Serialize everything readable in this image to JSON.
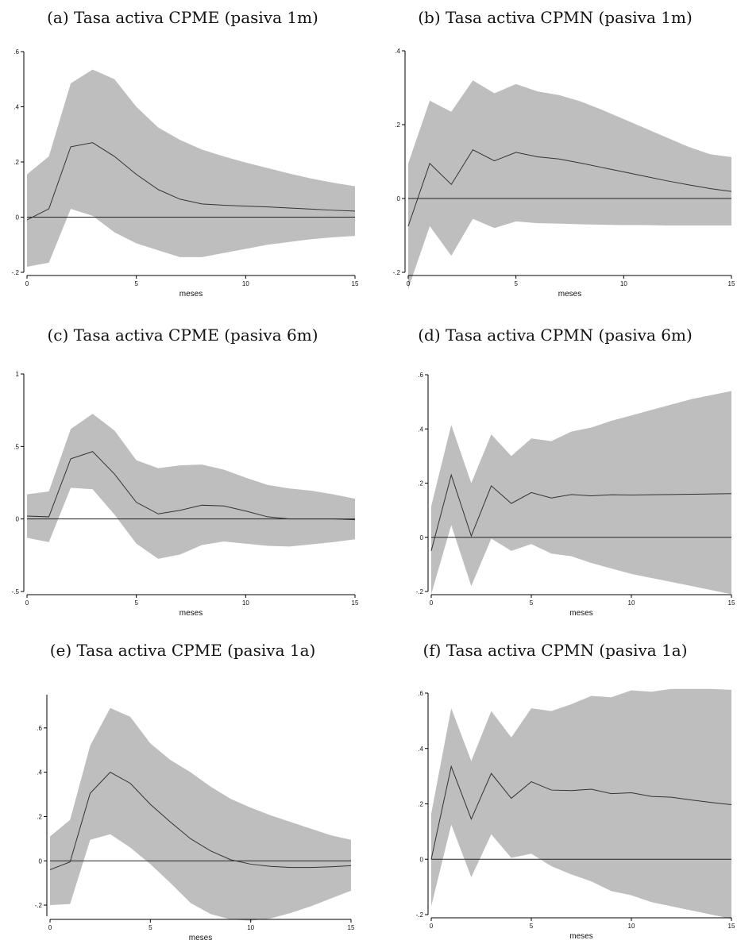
{
  "chart_data": [
    {
      "type": "area",
      "title": "(a) Tasa activa CPME (pasiva 1m)",
      "xlabel": "meses",
      "ylabel": "",
      "xlim": [
        0,
        15
      ],
      "ylim": [
        -0.2,
        0.6
      ],
      "xticks": [
        0,
        5,
        10,
        15
      ],
      "xtick_labels": [
        "0",
        "5",
        "10",
        "15"
      ],
      "yticks": [
        -0.2,
        0,
        0.2,
        0.4,
        0.6
      ],
      "ytick_labels": [
        "-.2",
        "0",
        ".2",
        ".4",
        ".6"
      ],
      "reference_line_y": 0,
      "grid": false,
      "x": [
        0,
        1,
        2,
        3,
        4,
        5,
        6,
        7,
        8,
        9,
        10,
        11,
        12,
        13,
        14,
        15
      ],
      "series": [
        {
          "values": [
            -0.01,
            0.03,
            0.255,
            0.27,
            0.22,
            0.155,
            0.1,
            0.065,
            0.048,
            0.043,
            0.04,
            0.037,
            0.033,
            0.029,
            0.025,
            0.022
          ]
        },
        {
          "values": [
            -0.18,
            -0.165,
            0.03,
            0.005,
            -0.055,
            -0.095,
            -0.12,
            -0.145,
            -0.145,
            -0.13,
            -0.115,
            -0.1,
            -0.09,
            -0.08,
            -0.073,
            -0.068
          ]
        },
        {
          "values": [
            0.155,
            0.22,
            0.485,
            0.535,
            0.5,
            0.4,
            0.325,
            0.28,
            0.245,
            0.22,
            0.198,
            0.178,
            0.158,
            0.14,
            0.125,
            0.112
          ]
        }
      ],
      "colors": {
        "band": "#bebebe",
        "line": "#333333",
        "axis": "#000000"
      }
    },
    {
      "type": "area",
      "title": "(b) Tasa activa CPMN (pasiva 1m)",
      "xlabel": "meses",
      "ylabel": "",
      "xlim": [
        0,
        15
      ],
      "ylim": [
        -0.2,
        0.4
      ],
      "xticks": [
        0,
        5,
        10,
        15
      ],
      "xtick_labels": [
        "0",
        "5",
        "10",
        "15"
      ],
      "yticks": [
        -0.2,
        0,
        0.2,
        0.4
      ],
      "ytick_labels": [
        "-.2",
        "0",
        ".2",
        ".4"
      ],
      "reference_line_y": 0,
      "grid": false,
      "x": [
        0,
        1,
        2,
        3,
        4,
        5,
        6,
        7,
        8,
        9,
        10,
        11,
        12,
        13,
        14,
        15
      ],
      "series": [
        {
          "values": [
            -0.075,
            0.095,
            0.038,
            0.132,
            0.102,
            0.125,
            0.113,
            0.107,
            0.096,
            0.084,
            0.072,
            0.06,
            0.048,
            0.037,
            0.027,
            0.019
          ]
        },
        {
          "values": [
            -0.245,
            -0.075,
            -0.155,
            -0.055,
            -0.08,
            -0.062,
            -0.067,
            -0.068,
            -0.07,
            -0.071,
            -0.072,
            -0.072,
            -0.073,
            -0.073,
            -0.073,
            -0.073
          ]
        },
        {
          "values": [
            0.095,
            0.265,
            0.235,
            0.32,
            0.285,
            0.31,
            0.29,
            0.28,
            0.263,
            0.24,
            0.215,
            0.19,
            0.165,
            0.14,
            0.12,
            0.112
          ]
        }
      ],
      "colors": {
        "band": "#bebebe",
        "line": "#333333",
        "axis": "#000000"
      }
    },
    {
      "type": "area",
      "title": "(c) Tasa activa CPME (pasiva 6m)",
      "xlabel": "meses",
      "ylabel": "",
      "xlim": [
        0,
        15
      ],
      "ylim": [
        -0.5,
        1
      ],
      "xticks": [
        0,
        5,
        10,
        15
      ],
      "xtick_labels": [
        "0",
        "5",
        "10",
        "15"
      ],
      "yticks": [
        -0.5,
        0,
        0.5,
        1
      ],
      "ytick_labels": [
        "-.5",
        "0",
        ".5",
        "1"
      ],
      "reference_line_y": 0,
      "grid": false,
      "x": [
        0,
        1,
        2,
        3,
        4,
        5,
        6,
        7,
        8,
        9,
        10,
        11,
        12,
        13,
        14,
        15
      ],
      "series": [
        {
          "values": [
            0.02,
            0.015,
            0.415,
            0.465,
            0.31,
            0.115,
            0.035,
            0.06,
            0.095,
            0.09,
            0.055,
            0.015,
            0.0,
            0.0,
            0.0,
            -0.005
          ]
        },
        {
          "values": [
            -0.13,
            -0.16,
            0.215,
            0.205,
            0.03,
            -0.17,
            -0.275,
            -0.245,
            -0.18,
            -0.155,
            -0.17,
            -0.185,
            -0.19,
            -0.175,
            -0.16,
            -0.14
          ]
        },
        {
          "values": [
            0.17,
            0.19,
            0.62,
            0.725,
            0.61,
            0.405,
            0.35,
            0.37,
            0.375,
            0.34,
            0.285,
            0.235,
            0.21,
            0.195,
            0.17,
            0.14
          ]
        }
      ],
      "colors": {
        "band": "#bebebe",
        "line": "#333333",
        "axis": "#000000"
      }
    },
    {
      "type": "area",
      "title": "(d) Tasa activa CPMN (pasiva 6m)",
      "xlabel": "meses",
      "ylabel": "",
      "xlim": [
        0,
        15
      ],
      "ylim": [
        -0.2,
        0.6
      ],
      "xticks": [
        0,
        5,
        10,
        15
      ],
      "xtick_labels": [
        "0",
        "5",
        "10",
        "15"
      ],
      "yticks": [
        -0.2,
        0,
        0.2,
        0.4,
        0.6
      ],
      "ytick_labels": [
        "-.2",
        "0",
        ".2",
        ".4",
        ".6"
      ],
      "reference_line_y": 0,
      "grid": false,
      "x": [
        0,
        1,
        2,
        3,
        4,
        5,
        6,
        7,
        8,
        9,
        10,
        11,
        12,
        13,
        14,
        15
      ],
      "series": [
        {
          "values": [
            -0.05,
            0.23,
            0.005,
            0.19,
            0.125,
            0.165,
            0.145,
            0.158,
            0.153,
            0.157,
            0.156,
            0.157,
            0.158,
            0.159,
            0.16,
            0.161
          ]
        },
        {
          "values": [
            -0.21,
            0.045,
            -0.18,
            -0.005,
            -0.05,
            -0.025,
            -0.06,
            -0.07,
            -0.095,
            -0.115,
            -0.135,
            -0.15,
            -0.165,
            -0.18,
            -0.195,
            -0.21
          ]
        },
        {
          "values": [
            0.115,
            0.415,
            0.2,
            0.38,
            0.3,
            0.365,
            0.355,
            0.39,
            0.405,
            0.43,
            0.45,
            0.47,
            0.49,
            0.51,
            0.525,
            0.54
          ]
        }
      ],
      "colors": {
        "band": "#bebebe",
        "line": "#333333",
        "axis": "#000000"
      }
    },
    {
      "type": "area",
      "title": "(e) Tasa activa CPME (pasiva 1a)",
      "xlabel": "meses",
      "ylabel": "",
      "xlim": [
        0,
        15
      ],
      "ylim": [
        -0.25,
        0.75
      ],
      "xticks": [
        0,
        5,
        10,
        15
      ],
      "xtick_labels": [
        "0",
        "5",
        "10",
        "15"
      ],
      "yticks": [
        -0.2,
        0,
        0.2,
        0.4,
        0.6
      ],
      "ytick_labels": [
        "-.2",
        "0",
        ".2",
        ".4",
        ".6"
      ],
      "reference_line_y": 0,
      "grid": false,
      "x": [
        0,
        1,
        2,
        3,
        4,
        5,
        6,
        7,
        8,
        9,
        10,
        11,
        12,
        13,
        14,
        15
      ],
      "series": [
        {
          "values": [
            -0.04,
            -0.005,
            0.305,
            0.4,
            0.35,
            0.255,
            0.175,
            0.1,
            0.045,
            0.005,
            -0.015,
            -0.025,
            -0.03,
            -0.03,
            -0.027,
            -0.022
          ]
        },
        {
          "values": [
            -0.2,
            -0.195,
            0.095,
            0.12,
            0.06,
            -0.015,
            -0.1,
            -0.19,
            -0.24,
            -0.265,
            -0.27,
            -0.26,
            -0.235,
            -0.205,
            -0.17,
            -0.135
          ]
        },
        {
          "values": [
            0.11,
            0.185,
            0.52,
            0.69,
            0.65,
            0.53,
            0.455,
            0.4,
            0.335,
            0.28,
            0.24,
            0.205,
            0.175,
            0.145,
            0.115,
            0.095
          ]
        }
      ],
      "colors": {
        "band": "#bebebe",
        "line": "#333333",
        "axis": "#000000"
      }
    },
    {
      "type": "area",
      "title": "(f) Tasa activa CPMN (pasiva 1a)",
      "xlabel": "meses",
      "ylabel": "",
      "xlim": [
        0,
        15
      ],
      "ylim": [
        -0.2,
        0.6
      ],
      "xticks": [
        0,
        5,
        10,
        15
      ],
      "xtick_labels": [
        "0",
        "5",
        "10",
        "15"
      ],
      "yticks": [
        -0.2,
        0,
        0.2,
        0.4,
        0.6
      ],
      "ytick_labels": [
        "-.2",
        "0",
        ".2",
        ".4",
        ".6"
      ],
      "reference_line_y": 0,
      "grid": false,
      "x": [
        0,
        1,
        2,
        3,
        4,
        5,
        6,
        7,
        8,
        9,
        10,
        11,
        12,
        13,
        14,
        15
      ],
      "series": [
        {
          "values": [
            0.0,
            0.335,
            0.145,
            0.31,
            0.22,
            0.28,
            0.25,
            0.248,
            0.253,
            0.237,
            0.24,
            0.227,
            0.224,
            0.214,
            0.205,
            0.197
          ]
        },
        {
          "values": [
            -0.17,
            0.125,
            -0.065,
            0.09,
            0.005,
            0.02,
            -0.025,
            -0.055,
            -0.08,
            -0.115,
            -0.13,
            -0.155,
            -0.17,
            -0.185,
            -0.2,
            -0.215
          ]
        },
        {
          "values": [
            0.165,
            0.545,
            0.355,
            0.535,
            0.44,
            0.545,
            0.535,
            0.56,
            0.59,
            0.585,
            0.61,
            0.605,
            0.615,
            0.615,
            0.615,
            0.612
          ]
        }
      ],
      "colors": {
        "band": "#bebebe",
        "line": "#333333",
        "axis": "#000000"
      }
    }
  ]
}
